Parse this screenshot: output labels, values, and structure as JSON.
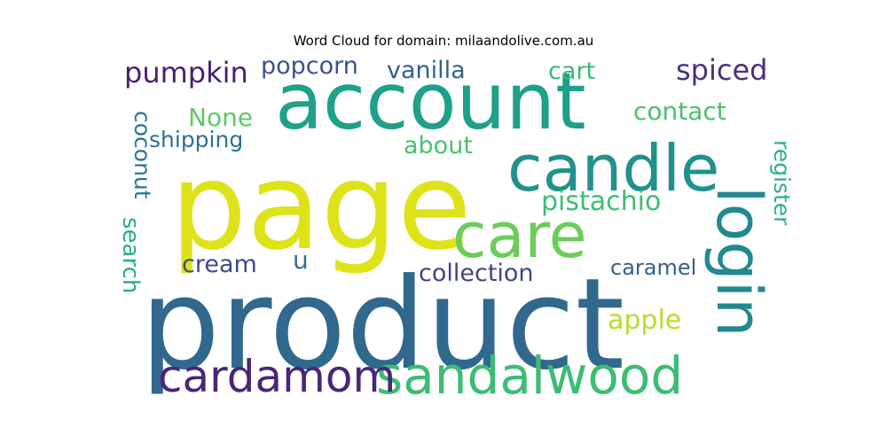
{
  "chart_data": {
    "type": "wordcloud",
    "title": "Word Cloud for domain: milaandolive.com.au",
    "words": [
      {
        "text": "product",
        "color": "#31688e"
      },
      {
        "text": "page",
        "color": "#dde318"
      },
      {
        "text": "account",
        "color": "#1fa088"
      },
      {
        "text": "candle",
        "color": "#21918c"
      },
      {
        "text": "care",
        "color": "#6ccd5a"
      },
      {
        "text": "login",
        "color": "#23898e"
      },
      {
        "text": "sandalwood",
        "color": "#3dbc74"
      },
      {
        "text": "cardamom",
        "color": "#482677"
      },
      {
        "text": "pumpkin",
        "color": "#481f70"
      },
      {
        "text": "spiced",
        "color": "#46327e"
      },
      {
        "text": "popcorn",
        "color": "#3b528b"
      },
      {
        "text": "vanilla",
        "color": "#33638d"
      },
      {
        "text": "cart",
        "color": "#3aba76"
      },
      {
        "text": "contact",
        "color": "#4ac16d"
      },
      {
        "text": "None",
        "color": "#5ec962"
      },
      {
        "text": "shipping",
        "color": "#2c738e"
      },
      {
        "text": "about",
        "color": "#4ac16d"
      },
      {
        "text": "coconut",
        "color": "#2a788e"
      },
      {
        "text": "pistachio",
        "color": "#3fbc73"
      },
      {
        "text": "register",
        "color": "#2db27d"
      },
      {
        "text": "search",
        "color": "#27ad81"
      },
      {
        "text": "cream",
        "color": "#3e4a89"
      },
      {
        "text": "u",
        "color": "#2c728e"
      },
      {
        "text": "collection",
        "color": "#414487"
      },
      {
        "text": "caramel",
        "color": "#355f8d"
      },
      {
        "text": "apple",
        "color": "#b5de2b"
      }
    ]
  }
}
